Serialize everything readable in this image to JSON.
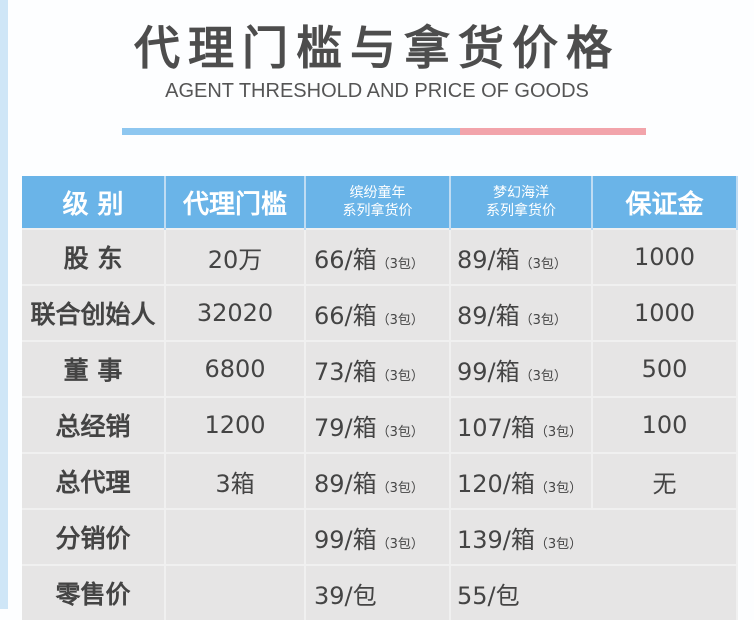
{
  "title": "代理门槛与拿货价格",
  "subtitle": "AGENT THRESHOLD AND PRICE OF GOODS",
  "colors": {
    "header_bg": "#6ab4e8",
    "row_bg": "#e6e5e5",
    "bar_blue": "#8ec7f0",
    "bar_pink": "#f2a4ab"
  },
  "table": {
    "headers": [
      "级 别",
      "代理门槛",
      [
        "缤纷童年",
        "系列拿货价"
      ],
      [
        "梦幻海洋",
        "系列拿货价"
      ],
      "保证金"
    ],
    "rows": [
      {
        "level": "股 东",
        "threshold": "20万",
        "a": "66/箱",
        "a_note": "（3包）",
        "b": "89/箱",
        "b_note": "（3包）",
        "deposit": "1000"
      },
      {
        "level": "联合创始人",
        "threshold": "32020",
        "a": "66/箱",
        "a_note": "（3包）",
        "b": "89/箱",
        "b_note": "（3包）",
        "deposit": "1000"
      },
      {
        "level": "董 事",
        "threshold": "6800",
        "a": "73/箱",
        "a_note": "（3包）",
        "b": "99/箱",
        "b_note": "（3包）",
        "deposit": "500"
      },
      {
        "level": "总经销",
        "threshold": "1200",
        "a": "79/箱",
        "a_note": "（3包）",
        "b": "107/箱",
        "b_note": "（3包）",
        "deposit": "100"
      },
      {
        "level": "总代理",
        "threshold": "3箱",
        "a": "89/箱",
        "a_note": "（3包）",
        "b": "120/箱",
        "b_note": "（3包）",
        "deposit": "无"
      },
      {
        "level": "分销价",
        "threshold": "",
        "a": "99/箱",
        "a_note": "（3包）",
        "b": "139/箱",
        "b_note": "（3包）",
        "deposit": ""
      },
      {
        "level": "零售价",
        "threshold": "",
        "a": "39/包",
        "a_note": "",
        "b": "55/包",
        "b_note": "",
        "deposit": ""
      }
    ]
  }
}
